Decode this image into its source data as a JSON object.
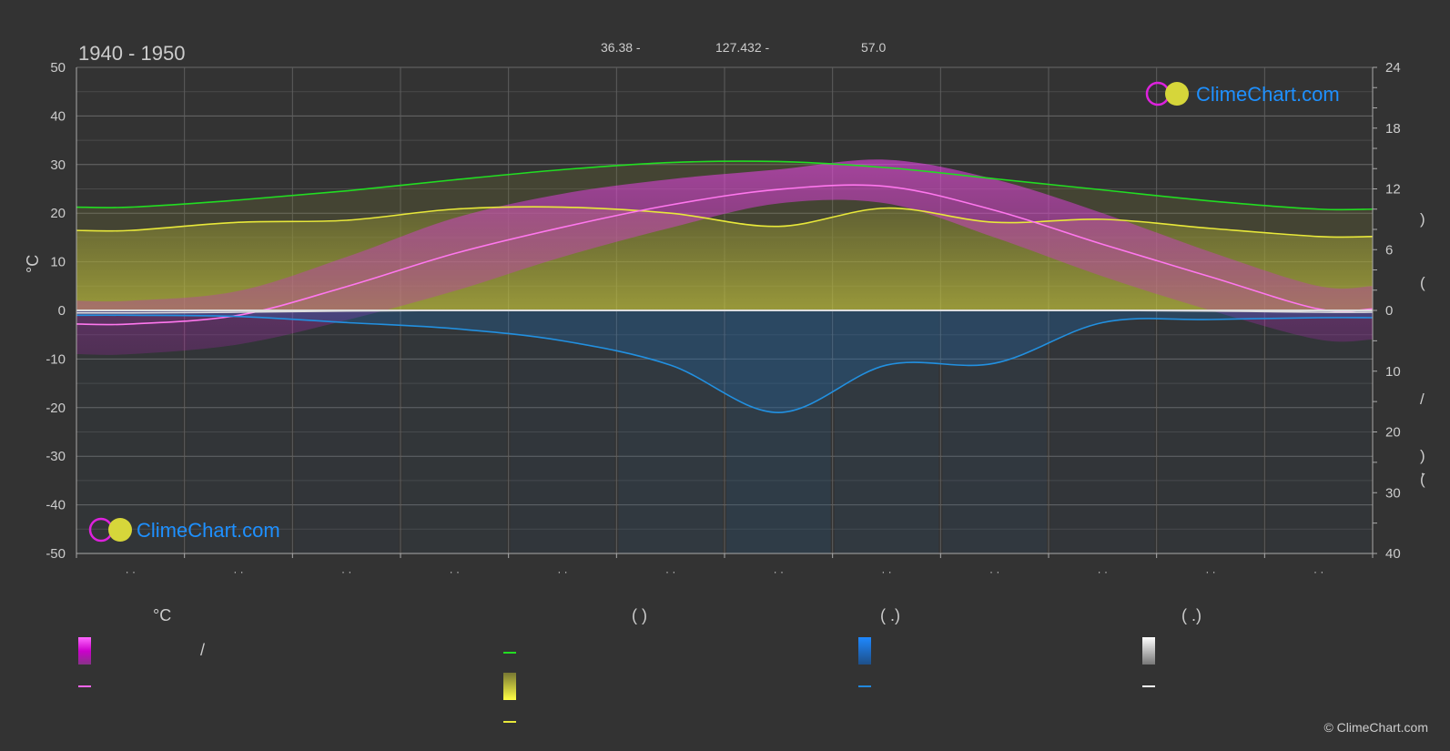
{
  "header": {
    "period": "1940 - 1950",
    "latitude": "36.38 -",
    "longitude": "127.432 -",
    "elevation": "57.0"
  },
  "watermark": {
    "brand": "ClimeChart.com"
  },
  "copyright": "© ClimeChart.com",
  "colors": {
    "background": "#333333",
    "daylight": "#22dd22",
    "sunshine": "#e8e83a",
    "temperature": "#ff66ee",
    "temperature_band": "#dd22dd",
    "precipitation": "#2288dd",
    "snow": "#dddddd",
    "brand_blue": "#1e90ff"
  },
  "chart_data": {
    "type": "line",
    "left_axis": {
      "label": "°C",
      "ylim": [
        -50,
        50
      ],
      "ticks": [
        50,
        40,
        30,
        20,
        10,
        0,
        -10,
        -20,
        -30,
        -40,
        -50
      ]
    },
    "right_axis_top": {
      "ylim": [
        0,
        24
      ],
      "ticks": [
        24,
        18,
        12,
        6,
        0
      ],
      "unit_glyphs": [
        ")",
        "("
      ]
    },
    "right_axis_bottom": {
      "ylim": [
        0,
        40
      ],
      "ticks": [
        0,
        10,
        20,
        30,
        40
      ],
      "unit_glyphs": [
        "/",
        ")",
        "·",
        "("
      ]
    },
    "month_tick_labels": [
      "· ·",
      "· ·",
      "· ·",
      "· ·",
      "· ·",
      "· ·",
      "· ·",
      "· ·",
      "· ·",
      "· ·",
      "· ·",
      "· ·"
    ],
    "x": [
      0.5,
      1.5,
      2.5,
      3.5,
      4.5,
      5.5,
      6.5,
      7.5,
      8.5,
      9.5,
      10.5,
      11.5
    ],
    "series": [
      {
        "key": "daylight_hours",
        "axis": "right_top",
        "values": [
          10.2,
          10.9,
          11.8,
          12.9,
          13.9,
          14.6,
          14.7,
          14.1,
          13.0,
          11.9,
          10.8,
          10.0
        ]
      },
      {
        "key": "sunshine_hours",
        "axis": "right_top",
        "values": [
          7.9,
          8.7,
          8.9,
          10.0,
          10.2,
          9.6,
          8.3,
          10.1,
          8.7,
          9.0,
          8.1,
          7.3
        ]
      },
      {
        "key": "temperature_mean",
        "axis": "left",
        "values": [
          -2.8,
          -1.0,
          4.9,
          11.7,
          17.1,
          21.7,
          24.9,
          25.5,
          20.6,
          13.6,
          6.9,
          0.3
        ]
      },
      {
        "key": "precipitation_mm",
        "axis": "right_bottom",
        "values": [
          0.8,
          1.0,
          2.0,
          3.0,
          5.0,
          9.0,
          16.8,
          9.0,
          8.7,
          2.0,
          1.5,
          1.2
        ]
      },
      {
        "key": "snow_mm",
        "axis": "right_bottom",
        "values": [
          0.4,
          0.3,
          0.1,
          0,
          0,
          0,
          0,
          0,
          0,
          0,
          0.1,
          0.3
        ]
      }
    ],
    "temperature_band": {
      "min": [
        -9,
        -7,
        -2,
        4,
        11,
        17,
        22,
        22,
        15,
        7,
        0,
        -6
      ],
      "max": [
        2,
        4,
        11,
        19,
        24,
        27,
        29,
        31,
        27,
        20,
        12,
        5
      ]
    }
  },
  "legend": {
    "col1": {
      "header": "°C",
      "items": [
        "/"
      ]
    },
    "col2": {
      "header": "(          )"
    },
    "col3": {
      "header": "(    .)"
    },
    "col4": {
      "header": "(    .)"
    }
  }
}
